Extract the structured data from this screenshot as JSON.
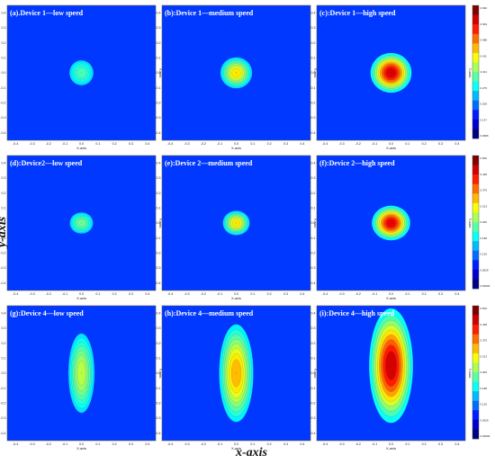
{
  "figure": {
    "xlabel": "x-axis",
    "ylabel": "y-axis"
  },
  "chart_data": [
    {
      "type": "heatmap",
      "title": "(a).Device 1—low speed",
      "xlabel": "X-axis",
      "ylabel": "Y-axis",
      "xlim": [
        -0.45,
        0.45
      ],
      "ylim": [
        -0.45,
        0.45
      ],
      "x_ticks": [
        "-0.4",
        "-0.3",
        "-0.2",
        "-0.1",
        "0.0",
        "0.1",
        "0.2",
        "0.3",
        "0.4"
      ],
      "y_ticks": [
        "-0.4",
        "-0.3",
        "-0.2",
        "-0.1",
        "0.0",
        "0.1",
        "0.2",
        "0.3",
        "0.4"
      ],
      "peak": {
        "x": 0.0,
        "y": 0.0,
        "intensity": 0.35,
        "sx": 0.07,
        "sy": 0.08
      },
      "colorbar": false
    },
    {
      "type": "heatmap",
      "title": "(b):Device 1—medium speed",
      "xlabel": "X-axis",
      "ylabel": "Y-axis",
      "xlim": [
        -0.45,
        0.45
      ],
      "ylim": [
        -0.45,
        0.45
      ],
      "x_ticks": [
        "-0.4",
        "-0.3",
        "-0.2",
        "-0.1",
        "0.0",
        "0.1",
        "0.2",
        "0.3",
        "0.4"
      ],
      "y_ticks": [
        "-0.4",
        "-0.3",
        "-0.2",
        "-0.1",
        "0.0",
        "0.1",
        "0.2",
        "0.3",
        "0.4"
      ],
      "peak": {
        "x": 0.0,
        "y": 0.0,
        "intensity": 0.62,
        "sx": 0.065,
        "sy": 0.07
      },
      "colorbar": false
    },
    {
      "type": "heatmap",
      "title": "(c):Device 1—high speed",
      "xlabel": "X-axis",
      "ylabel": "Y-axis",
      "xlim": [
        -0.45,
        0.45
      ],
      "ylim": [
        -0.45,
        0.45
      ],
      "x_ticks": [
        "-0.4",
        "-0.3",
        "-0.2",
        "-0.1",
        "0.0",
        "0.1",
        "0.2",
        "0.3",
        "0.4"
      ],
      "y_ticks": [
        "-0.4",
        "-0.3",
        "-0.2",
        "-0.1",
        "0.0",
        "0.1",
        "0.2",
        "0.3",
        "0.4"
      ],
      "peak": {
        "x": 0.0,
        "y": 0.0,
        "intensity": 0.97,
        "sx": 0.075,
        "sy": 0.08
      },
      "colorbar": true,
      "colorbar_ticks": [
        "0.660",
        "0.549",
        "0.488",
        "0.411",
        "0.341",
        "0.275",
        "0.206",
        "0.137",
        "0.0686"
      ]
    },
    {
      "type": "heatmap",
      "title": "(d):Device2—low speed",
      "xlabel": "X-axis",
      "ylabel": "Y-axis",
      "xlim": [
        -0.45,
        0.45
      ],
      "ylim": [
        -0.45,
        0.45
      ],
      "x_ticks": [
        "-0.4",
        "-0.3",
        "-0.2",
        "-0.1",
        "0.0",
        "0.1",
        "0.2",
        "0.3",
        "0.4"
      ],
      "y_ticks": [
        "-0.4",
        "-0.3",
        "-0.2",
        "-0.1",
        "0.0",
        "0.1",
        "0.2",
        "0.3",
        "0.4"
      ],
      "peak": {
        "x": 0.0,
        "y": 0.0,
        "intensity": 0.4,
        "sx": 0.06,
        "sy": 0.06
      },
      "colorbar": false
    },
    {
      "type": "heatmap",
      "title": "(e):Device 2—medium speed",
      "xlabel": "X-axis",
      "ylabel": "Y-axis",
      "xlim": [
        -0.45,
        0.45
      ],
      "ylim": [
        -0.45,
        0.45
      ],
      "x_ticks": [
        "-0.4",
        "-0.3",
        "-0.2",
        "-0.1",
        "0.0",
        "0.1",
        "0.2",
        "0.3",
        "0.4"
      ],
      "y_ticks": [
        "-0.4",
        "-0.3",
        "-0.2",
        "-0.1",
        "0.0",
        "0.1",
        "0.2",
        "0.3",
        "0.4"
      ],
      "peak": {
        "x": 0.0,
        "y": 0.0,
        "intensity": 0.62,
        "sx": 0.055,
        "sy": 0.055
      },
      "colorbar": false
    },
    {
      "type": "heatmap",
      "title": "(f):Device 2—high speed",
      "xlabel": "X-axis",
      "ylabel": "Y-axis",
      "xlim": [
        -0.45,
        0.45
      ],
      "ylim": [
        -0.45,
        0.45
      ],
      "x_ticks": [
        "-0.4",
        "-0.3",
        "-0.2",
        "-0.1",
        "0.0",
        "0.1",
        "0.2",
        "0.3",
        "0.4"
      ],
      "y_ticks": [
        "-0.4",
        "-0.3",
        "-0.2",
        "-0.1",
        "0.0",
        "0.1",
        "0.2",
        "0.3",
        "0.4"
      ],
      "peak": {
        "x": 0.0,
        "y": 0.0,
        "intensity": 0.95,
        "sx": 0.07,
        "sy": 0.07
      },
      "colorbar": true,
      "colorbar_ticks": [
        "0.500",
        "0.438",
        "0.375",
        "0.313",
        "0.250",
        "0.188",
        "0.125",
        "0.0625",
        "0.00000"
      ]
    },
    {
      "type": "heatmap",
      "title": "(g):Device 4—low speed",
      "xlabel": "X-axis",
      "ylabel": "Y-axis",
      "xlim": [
        -0.45,
        0.45
      ],
      "ylim": [
        -0.45,
        0.45
      ],
      "x_ticks": [
        "-0.4",
        "-0.3",
        "-0.2",
        "-0.1",
        "0.0",
        "0.1",
        "0.2",
        "0.3",
        "0.4"
      ],
      "y_ticks": [
        "-0.4",
        "-0.3",
        "-0.2",
        "-0.1",
        "0.0",
        "0.1",
        "0.2",
        "0.3",
        "0.4"
      ],
      "peak": {
        "x": 0.0,
        "y": 0.0,
        "intensity": 0.5,
        "sx": 0.06,
        "sy": 0.2
      },
      "colorbar": false
    },
    {
      "type": "heatmap",
      "title": "(h):Device 4—medium speed",
      "xlabel": "X-axis",
      "ylabel": "Y-axis",
      "xlim": [
        -0.45,
        0.45
      ],
      "ylim": [
        -0.45,
        0.45
      ],
      "x_ticks": [
        "-0.4",
        "-0.3",
        "-0.2",
        "-0.1",
        "0.0",
        "0.1",
        "0.2",
        "0.3",
        "0.4"
      ],
      "y_ticks": [
        "-0.4",
        "-0.3",
        "-0.2",
        "-0.1",
        "0.0",
        "0.1",
        "0.2",
        "0.3",
        "0.4"
      ],
      "peak": {
        "x": 0.0,
        "y": 0.0,
        "intensity": 0.68,
        "sx": 0.07,
        "sy": 0.22
      },
      "colorbar": false
    },
    {
      "type": "heatmap",
      "title": "(i):Device 4—high speed",
      "xlabel": "X-axis",
      "ylabel": "Y-axis",
      "xlim": [
        -0.45,
        0.45
      ],
      "ylim": [
        -0.45,
        0.45
      ],
      "x_ticks": [
        "-0.4",
        "-0.3",
        "-0.2",
        "-0.1",
        "0.0",
        "0.1",
        "0.2",
        "0.3",
        "0.4"
      ],
      "y_ticks": [
        "-0.4",
        "-0.3",
        "-0.2",
        "-0.1",
        "0.0",
        "0.1",
        "0.2",
        "0.3",
        "0.4"
      ],
      "peak": {
        "x": 0.0,
        "y": 0.05,
        "intensity": 0.98,
        "sx": 0.08,
        "sy": 0.23
      },
      "colorbar": true,
      "colorbar_ticks": [
        "0.500",
        "0.438",
        "0.375",
        "0.313",
        "0.250",
        "0.188",
        "0.125",
        "0.0625",
        "0.00000"
      ]
    }
  ]
}
